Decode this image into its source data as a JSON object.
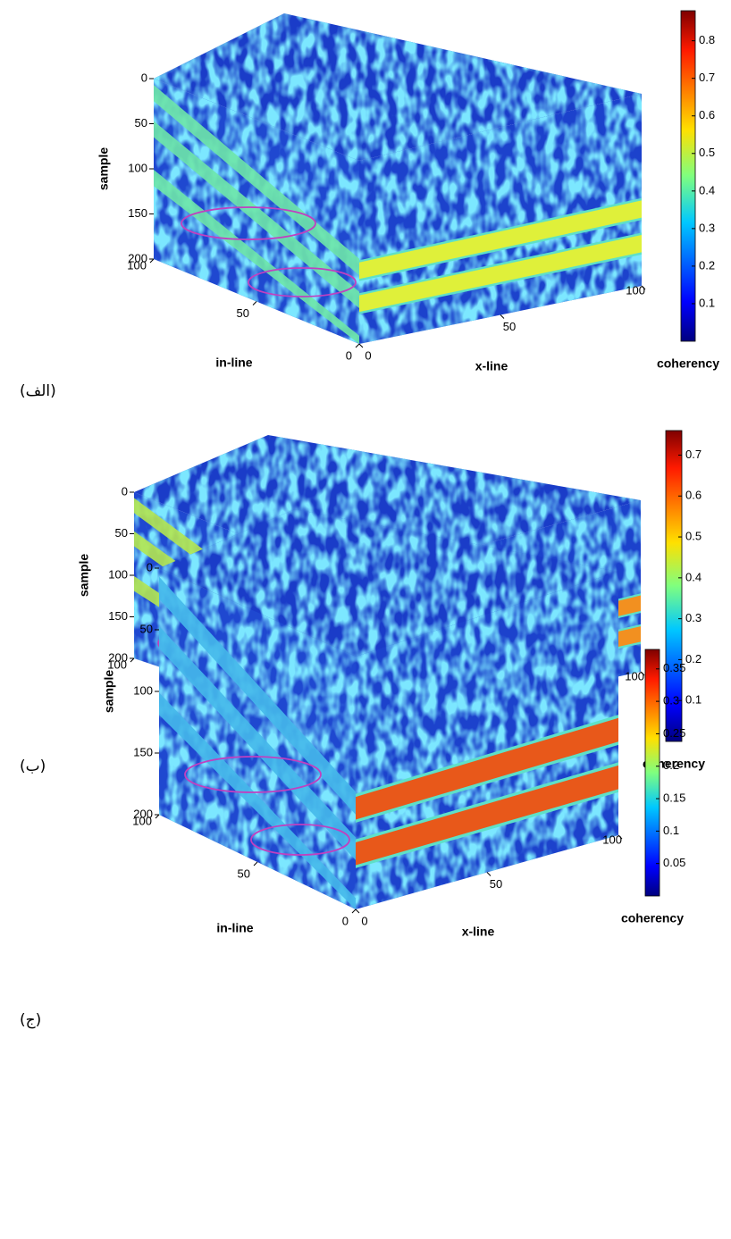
{
  "chart_data": [
    {
      "type": "cube",
      "panel_label": "(الف)",
      "sample_label": "sample",
      "inline_label": "in-line",
      "xline_label": "x-line",
      "colorbar_label": "coherency",
      "sample_lim": [
        0,
        200
      ],
      "sample_ticks": [
        0,
        50,
        100,
        150,
        200
      ],
      "inline_lim": [
        0,
        100
      ],
      "inline_ticks": [
        0,
        50,
        100
      ],
      "xline_lim": [
        0,
        100
      ],
      "xline_ticks": [
        0,
        50,
        100
      ],
      "colorbar_lim": [
        0,
        0.88
      ],
      "colorbar_ticks": [
        0.1,
        0.2,
        0.3,
        0.4,
        0.5,
        0.6,
        0.7,
        0.8
      ]
    },
    {
      "type": "cube",
      "panel_label": "(ب)",
      "sample_label": "sample",
      "inline_label": "in-line",
      "xline_label": "x-line",
      "colorbar_label": "coherency",
      "sample_lim": [
        0,
        200
      ],
      "sample_ticks": [
        0,
        50,
        100,
        150,
        200
      ],
      "inline_lim": [
        0,
        100
      ],
      "inline_ticks": [
        0,
        50,
        100
      ],
      "xline_lim": [
        0,
        100
      ],
      "xline_ticks": [
        0,
        50,
        100
      ],
      "colorbar_lim": [
        0,
        0.76
      ],
      "colorbar_ticks": [
        0.1,
        0.2,
        0.3,
        0.4,
        0.5,
        0.6,
        0.7
      ]
    },
    {
      "type": "cube",
      "panel_label": "(ج)",
      "sample_label": "sample",
      "inline_label": "in-line",
      "xline_label": "x-line",
      "colorbar_label": "coherency",
      "sample_lim": [
        0,
        200
      ],
      "sample_ticks": [
        0,
        50,
        100,
        150,
        200
      ],
      "inline_lim": [
        0,
        100
      ],
      "inline_ticks": [
        0,
        50,
        100
      ],
      "xline_lim": [
        0,
        100
      ],
      "xline_ticks": [
        0,
        50,
        100
      ],
      "colorbar_lim": [
        0,
        0.38
      ],
      "colorbar_ticks": [
        0.05,
        0.1,
        0.15,
        0.2,
        0.25,
        0.3,
        0.35
      ]
    }
  ]
}
